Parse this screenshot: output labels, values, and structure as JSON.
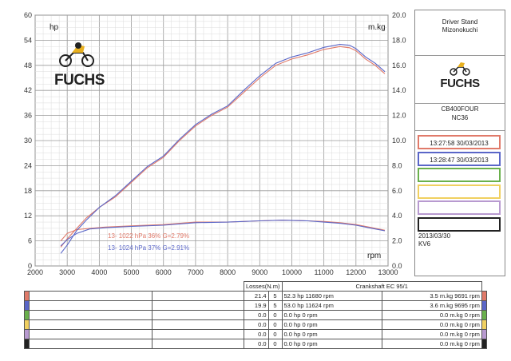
{
  "chart_data": {
    "type": "line",
    "xlabel": "rpm",
    "ylabel_left": "hp",
    "ylabel_right": "m.kg",
    "xlim": [
      2000,
      13000
    ],
    "xticks": [
      2000,
      3000,
      4000,
      5000,
      6000,
      7000,
      8000,
      9000,
      10000,
      11000,
      12000,
      13000
    ],
    "ylim_left": [
      0,
      60
    ],
    "yticks_left": [
      0,
      6,
      12,
      18,
      24,
      30,
      36,
      42,
      48,
      54,
      60
    ],
    "ylim_right": [
      0,
      20
    ],
    "yticks_right": [
      "0.0",
      "2.0",
      "4.0",
      "6.0",
      "8.0",
      "10.0",
      "12.0",
      "14.0",
      "16.0",
      "18.0",
      "20.0"
    ],
    "grid": true,
    "series": [
      {
        "name": "13:27:58 30/03/2013",
        "color": "#e07a6a",
        "power_hp": {
          "x": [
            2800,
            3000,
            3300,
            3600,
            4000,
            4500,
            5000,
            5500,
            6000,
            6500,
            7000,
            7500,
            8000,
            8500,
            9000,
            9500,
            10000,
            10500,
            11000,
            11500,
            11800,
            12000,
            12300,
            12600,
            12900
          ],
          "y": [
            4.5,
            6.5,
            9.0,
            11.5,
            14.0,
            16.5,
            20.0,
            23.5,
            26.0,
            30.0,
            33.5,
            36.0,
            38.0,
            41.5,
            45.0,
            48.0,
            49.5,
            50.5,
            51.8,
            52.5,
            52.2,
            51.5,
            49.5,
            48.0,
            46.0
          ]
        },
        "torque_mkg": {
          "x": [
            2800,
            3000,
            3300,
            3700,
            4200,
            5000,
            6000,
            7000,
            8000,
            9000,
            9700,
            10500,
            11000,
            11500,
            12000,
            12500,
            12900
          ],
          "y": [
            2.0,
            2.6,
            2.9,
            3.0,
            3.1,
            3.2,
            3.3,
            3.5,
            3.5,
            3.6,
            3.65,
            3.6,
            3.55,
            3.45,
            3.3,
            3.05,
            2.85
          ]
        }
      },
      {
        "name": "13:28:47 30/03/2013",
        "color": "#5a66c8",
        "power_hp": {
          "x": [
            2800,
            3000,
            3300,
            3600,
            4000,
            4500,
            5000,
            5500,
            6000,
            6500,
            7000,
            7500,
            8000,
            8500,
            9000,
            9500,
            10000,
            10500,
            11000,
            11500,
            11800,
            12000,
            12300,
            12600,
            12900
          ],
          "y": [
            3.0,
            5.0,
            8.5,
            11.0,
            14.0,
            16.8,
            20.3,
            23.8,
            26.3,
            30.3,
            33.8,
            36.3,
            38.3,
            42.0,
            45.5,
            48.5,
            50.0,
            51.0,
            52.3,
            53.0,
            52.8,
            52.0,
            50.0,
            48.5,
            46.5
          ]
        },
        "torque_mkg": {
          "x": [
            2800,
            3000,
            3300,
            3700,
            4200,
            5000,
            6000,
            7000,
            8000,
            9000,
            9700,
            10500,
            11000,
            11500,
            12000,
            12500,
            12900
          ],
          "y": [
            1.6,
            2.1,
            2.6,
            2.95,
            3.05,
            3.15,
            3.25,
            3.45,
            3.5,
            3.6,
            3.65,
            3.6,
            3.5,
            3.4,
            3.25,
            3.0,
            2.8
          ]
        }
      }
    ],
    "annotations": [
      {
        "text": "13-  1022 hPa  36%   G=2.79%",
        "color": "#e07a6a"
      },
      {
        "text": "13-  1024 hPa  37%   G=2.91%",
        "color": "#5a66c8"
      }
    ]
  },
  "brand": {
    "name": "FUCHS"
  },
  "panel": {
    "stand_line1": "Driver Stand",
    "stand_line2": "Mizonokuchi",
    "model_line1": "CB400FOUR",
    "model_line2": "NC36",
    "runs": [
      {
        "label": "13:27:58  30/03/2013",
        "color": "#e07a6a"
      },
      {
        "label": "13:28:47  30/03/2013",
        "color": "#5a66c8"
      },
      {
        "label": "",
        "color": "#6ab04c"
      },
      {
        "label": "",
        "color": "#f0d060"
      },
      {
        "label": "",
        "color": "#b89ad0"
      },
      {
        "label": "",
        "color": "#222222"
      }
    ],
    "date": "2013/03/30",
    "code": "KV6"
  },
  "table": {
    "header_losses": "Losses(N.m)",
    "header_crank": "Crankshaft EC 95/1",
    "rows": [
      {
        "color": "#e07a6a",
        "loss": "21.4",
        "n": "5",
        "hp": "52.3 hp 11680 rpm",
        "torque": "3.5 m.kg 9691 rpm"
      },
      {
        "color": "#5a66c8",
        "loss": "19.9",
        "n": "5",
        "hp": "53.0 hp 11624 rpm",
        "torque": "3.6 m.kg 9695 rpm"
      },
      {
        "color": "#6ab04c",
        "loss": "0.0",
        "n": "0",
        "hp": "0.0 hp 0 rpm",
        "torque": "0.0 m.kg 0 rpm"
      },
      {
        "color": "#f0d060",
        "loss": "0.0",
        "n": "0",
        "hp": "0.0 hp 0 rpm",
        "torque": "0.0 m.kg 0 rpm"
      },
      {
        "color": "#b89ad0",
        "loss": "0.0",
        "n": "0",
        "hp": "0.0 hp 0 rpm",
        "torque": "0.0 m.kg 0 rpm"
      },
      {
        "color": "#222222",
        "loss": "0.0",
        "n": "0",
        "hp": "0.0 hp 0 rpm",
        "torque": "0.0 m.kg 0 rpm"
      }
    ]
  }
}
